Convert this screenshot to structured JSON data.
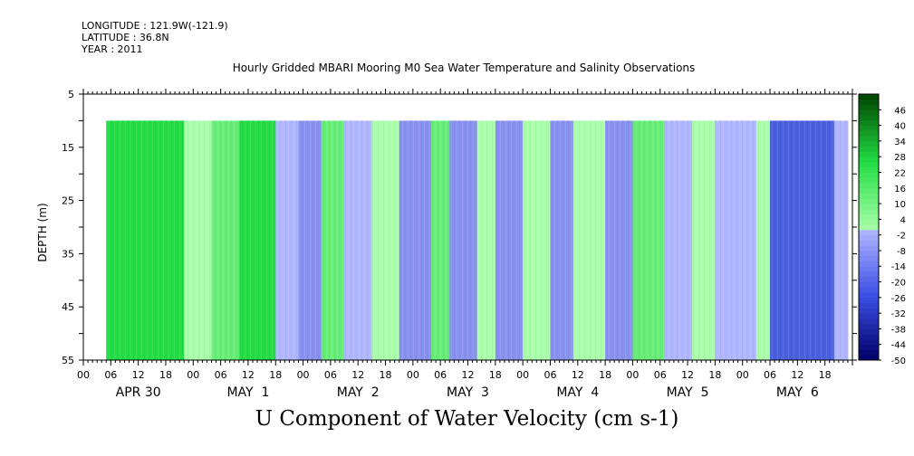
{
  "header": {
    "longitude": "LONGITUDE : 121.9W(-121.9)",
    "latitude": "LATITUDE : 36.8N",
    "year": "YEAR : 2011"
  },
  "chart_data": {
    "type": "heatmap",
    "title": "Hourly Gridded MBARI Mooring M0 Sea Water Temperature and Salinity Observations",
    "xlabel": "U Component of Water Velocity (cm s-1)",
    "ylabel": "DEPTH (m)",
    "y_ticks": [
      5,
      15,
      25,
      35,
      45,
      55
    ],
    "ylim": [
      55,
      5
    ],
    "x_hour_ticks": [
      "00",
      "06",
      "12",
      "18",
      "00",
      "06",
      "12",
      "18",
      "00",
      "06",
      "12",
      "18",
      "00",
      "06",
      "12",
      "18",
      "00",
      "06",
      "12",
      "18",
      "00",
      "06",
      "12",
      "18",
      "00",
      "06",
      "12",
      "18"
    ],
    "day_labels": [
      "APR 30",
      "MAY  1",
      "MAY  2",
      "MAY  3",
      "MAY  4",
      "MAY  5",
      "MAY  6"
    ],
    "xlim_hours": [
      0,
      168
    ],
    "data_start_hour": 5,
    "data_end_hour": 167,
    "data_depth_range": [
      10,
      55
    ],
    "colorbar_labels": [
      "46",
      "40",
      "34",
      "28",
      "22",
      "16",
      "10",
      "4",
      "-2",
      "-8",
      "-14",
      "-20",
      "-26",
      "-32",
      "-38",
      "-44",
      "-50"
    ],
    "colorbar_range": [
      -50,
      52
    ],
    "colors": {
      "positive_light": "#aaffaa",
      "positive_mid": "#66ee77",
      "positive_strong": "#22dd44",
      "negative_light": "#b0b6ff",
      "negative_mid": "#8890f0",
      "negative_strong": "#4a5ee0",
      "colorbar_top": "#004400",
      "colorbar_bottom": "#000066"
    },
    "u_velocity_by_hour_segment": [
      {
        "from_hour": 5,
        "to_hour": 10,
        "value": 12
      },
      {
        "from_hour": 10,
        "to_hour": 22,
        "value": 14
      },
      {
        "from_hour": 22,
        "to_hour": 28,
        "value": 2
      },
      {
        "from_hour": 28,
        "to_hour": 34,
        "value": 10
      },
      {
        "from_hour": 34,
        "to_hour": 42,
        "value": 14
      },
      {
        "from_hour": 42,
        "to_hour": 47,
        "value": -2
      },
      {
        "from_hour": 47,
        "to_hour": 52,
        "value": -8
      },
      {
        "from_hour": 52,
        "to_hour": 57,
        "value": 8
      },
      {
        "from_hour": 57,
        "to_hour": 63,
        "value": -6
      },
      {
        "from_hour": 63,
        "to_hour": 69,
        "value": 6
      },
      {
        "from_hour": 69,
        "to_hour": 76,
        "value": -8
      },
      {
        "from_hour": 76,
        "to_hour": 80,
        "value": 8
      },
      {
        "from_hour": 80,
        "to_hour": 86,
        "value": -10
      },
      {
        "from_hour": 86,
        "to_hour": 90,
        "value": 6
      },
      {
        "from_hour": 90,
        "to_hour": 96,
        "value": -8
      },
      {
        "from_hour": 96,
        "to_hour": 102,
        "value": 6
      },
      {
        "from_hour": 102,
        "to_hour": 107,
        "value": -8
      },
      {
        "from_hour": 107,
        "to_hour": 114,
        "value": 4
      },
      {
        "from_hour": 114,
        "to_hour": 120,
        "value": -10
      },
      {
        "from_hour": 120,
        "to_hour": 127,
        "value": 8
      },
      {
        "from_hour": 127,
        "to_hour": 133,
        "value": -6
      },
      {
        "from_hour": 133,
        "to_hour": 138,
        "value": 6
      },
      {
        "from_hour": 138,
        "to_hour": 147,
        "value": -6
      },
      {
        "from_hour": 147,
        "to_hour": 150,
        "value": 6
      },
      {
        "from_hour": 150,
        "to_hour": 164,
        "value": -14
      },
      {
        "from_hour": 164,
        "to_hour": 167,
        "value": -6
      }
    ]
  }
}
